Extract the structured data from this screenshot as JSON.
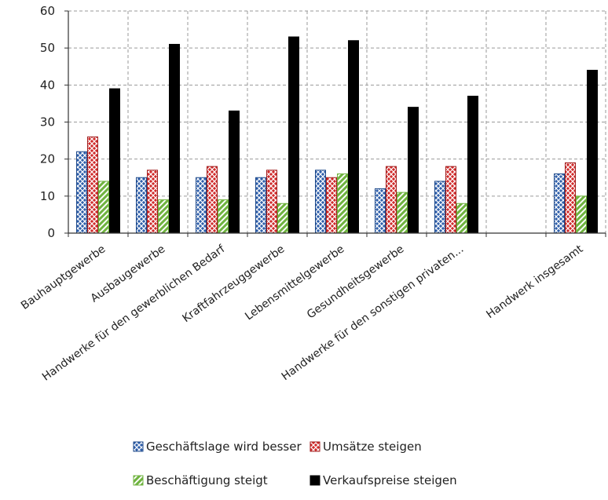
{
  "chart_data": {
    "type": "bar",
    "title": "",
    "xlabel": "",
    "ylabel": "",
    "ylim": [
      0,
      60
    ],
    "yticks": [
      0,
      10,
      20,
      30,
      40,
      50,
      60
    ],
    "grid": "dashed",
    "legend_position": "bottom",
    "categories": [
      "Bauhauptgewerbe",
      "Ausbaugewerbe",
      "Handwerke für den gewerblichen Bedarf",
      "Kraftfahrzeuggewerbe",
      "Lebensmittelgewerbe",
      "Gesundheitsgewerbe",
      "Handwerke für den sonstigen privaten...",
      "",
      "Handwerk insgesamt"
    ],
    "series": [
      {
        "name": "Geschäftslage wird besser",
        "color": "#2f5faa",
        "pattern": "crosshatch",
        "values": [
          22,
          15,
          15,
          15,
          17,
          12,
          14,
          null,
          16
        ]
      },
      {
        "name": "Umsätze steigen",
        "color": "#d02a2a",
        "pattern": "crosshatch",
        "values": [
          26,
          17,
          18,
          17,
          15,
          18,
          18,
          null,
          19
        ]
      },
      {
        "name": "Beschäftigung steigt",
        "color": "#6fb33f",
        "pattern": "diagonal",
        "values": [
          14,
          9,
          9,
          8,
          16,
          11,
          8,
          null,
          10
        ]
      },
      {
        "name": "Verkaufspreise steigen",
        "color": "#000000",
        "pattern": "solid",
        "values": [
          39,
          51,
          33,
          53,
          52,
          34,
          37,
          null,
          44
        ]
      }
    ]
  }
}
